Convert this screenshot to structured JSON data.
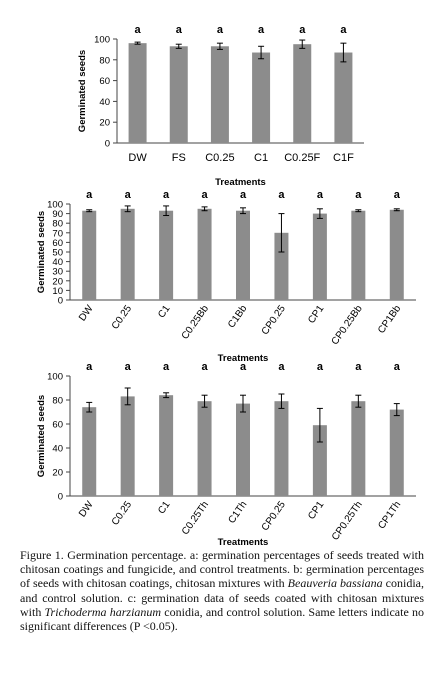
{
  "charts": [
    {
      "type": "bar",
      "ylabel": "Germinated seeds",
      "xlabel": "Treatments",
      "ylim": [
        0,
        100
      ],
      "yticks": [
        0,
        20,
        40,
        60,
        80,
        100
      ],
      "categories": [
        "DW",
        "FS",
        "C0.25",
        "C1",
        "C0.25F",
        "C1F"
      ],
      "values": [
        96,
        93,
        93,
        87,
        95,
        87
      ],
      "errors": [
        1,
        2,
        3,
        6,
        4,
        9
      ],
      "letters": [
        "a",
        "a",
        "a",
        "a",
        "a",
        "a"
      ],
      "tick_rotation": 0,
      "bar_color": "#8c8c8c"
    },
    {
      "type": "bar",
      "ylabel": "Germinated seeds",
      "xlabel": "Treatments",
      "ylim": [
        0,
        100
      ],
      "yticks": [
        0,
        10,
        20,
        30,
        40,
        50,
        60,
        70,
        80,
        90,
        100
      ],
      "categories": [
        "DW",
        "C0.25",
        "C1",
        "C0.25Bb",
        "C1Bb",
        "CP0.25",
        "CP1",
        "CP0.25Bb",
        "CP1Bb"
      ],
      "values": [
        93,
        95,
        93,
        95,
        93,
        70,
        90,
        93,
        94
      ],
      "errors": [
        1,
        3,
        5,
        2,
        3,
        20,
        5,
        1,
        1
      ],
      "letters": [
        "a",
        "a",
        "a",
        "a",
        "a",
        "a",
        "a",
        "a",
        "a"
      ],
      "tick_rotation": -55,
      "bar_color": "#8c8c8c"
    },
    {
      "type": "bar",
      "ylabel": "Germinated seeds",
      "xlabel": "Treatments",
      "ylim": [
        0,
        100
      ],
      "yticks": [
        0,
        20,
        40,
        60,
        80,
        100
      ],
      "categories": [
        "DW",
        "C0.25",
        "C1",
        "C0.25Th",
        "C1Th",
        "CP0.25",
        "CP1",
        "CP0.25Th",
        "CP1Th"
      ],
      "values": [
        74,
        83,
        84,
        79,
        77,
        79,
        59,
        79,
        72
      ],
      "errors": [
        4,
        7,
        2,
        5,
        7,
        6,
        14,
        5,
        5
      ],
      "letters": [
        "a",
        "a",
        "a",
        "a",
        "a",
        "a",
        "a",
        "a",
        "a"
      ],
      "tick_rotation": -55,
      "bar_color": "#8c8c8c"
    }
  ],
  "caption": {
    "lead": "Figure 1. Germination percentage. a: germination percentages of seeds treated with chitosan coatings and fungicide, and control treatments. b: germination percentages of seeds with chitosan coatings, chitosan mixtures with ",
    "italic1": "Beauveria bassiana",
    "mid": " conidia, and control solution. c: germination data of seeds coated with chitosan mixtures with ",
    "italic2": "Trichoderma harzianum",
    "tail": " conidia, and control solution. Same letters indicate no significant differences (P <0.05)."
  }
}
